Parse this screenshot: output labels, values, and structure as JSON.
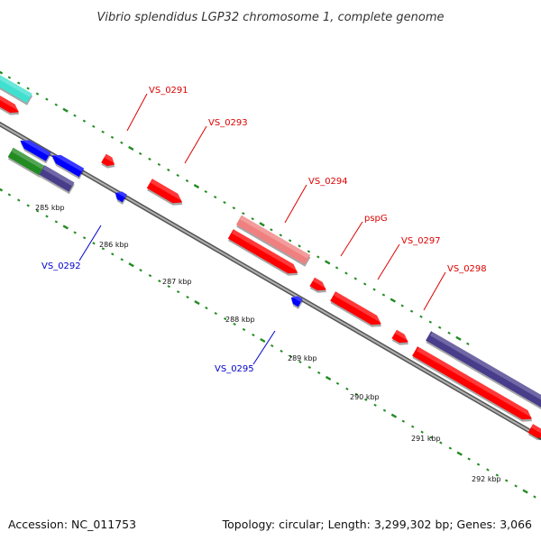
{
  "title": "Vibrio splendidus LGP32 chromosome 1, complete genome",
  "footer": {
    "accession": "Accession: NC_011753",
    "topology": "Topology: circular; Length: 3,299,302 bp; Genes: 3,066"
  },
  "colors": {
    "forward_gene": "#ff0000",
    "reverse_gene": "#0000ff",
    "highlight_gene": "#f08080",
    "cyan_feature": "#40e0d0",
    "green_feature": "#228b22",
    "purple_feature": "#483d8b",
    "dotted_guide": "#228b22",
    "backbone": "#888888",
    "forward_label": "#dd0000",
    "reverse_label": "#0000cc"
  },
  "ticks": [
    "285 kbp",
    "286 kbp",
    "287 kbp",
    "288 kbp",
    "289 kbp",
    "290 kbp",
    "291 kbp",
    "292 kbp"
  ],
  "gene_labels": {
    "vs0291": "VS_0291",
    "vs0292": "VS_0292",
    "vs0293": "VS_0293",
    "vs0294": "VS_0294",
    "pspg": "pspG",
    "vs0295": "VS_0295",
    "vs0297": "VS_0297",
    "vs0298": "VS_0298"
  }
}
